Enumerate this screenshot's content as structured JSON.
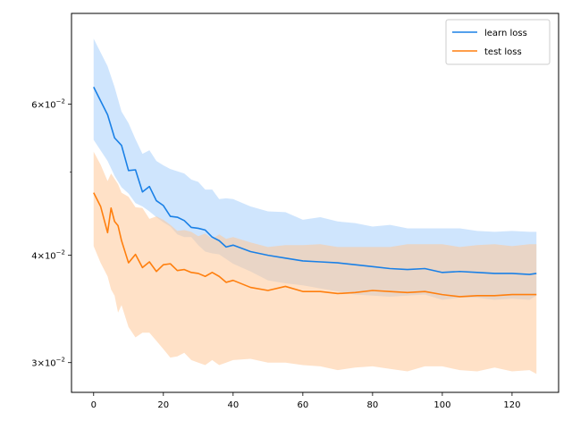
{
  "chart_data": {
    "type": "line",
    "title": "",
    "xlabel": "",
    "ylabel": "",
    "yscale": "log",
    "xlim": [
      -6.35,
      133.35
    ],
    "ylim": [
      0.0277,
      0.0765
    ],
    "grid": false,
    "legend_position": "top-right",
    "x_ticks": [
      0,
      20,
      40,
      60,
      80,
      100,
      120
    ],
    "x_tick_labels": [
      "0",
      "20",
      "40",
      "60",
      "80",
      "100",
      "120"
    ],
    "y_ticks": [
      {
        "value": 0.06,
        "mant": "6",
        "exp": "−2"
      },
      {
        "value": 0.04,
        "mant": "4",
        "exp": "−2"
      },
      {
        "value": 0.03,
        "mant": "3",
        "exp": "−2"
      }
    ],
    "y_minor_ticks": [
      0.05
    ],
    "y_tick_base": "×10",
    "series": [
      {
        "name": "learn loss",
        "color": "#1a80e6",
        "band_color": "#a8d0fb",
        "x": [
          0,
          4,
          6,
          8,
          10,
          12,
          14,
          16,
          18,
          20,
          22,
          24,
          26,
          28,
          30,
          32,
          34,
          36,
          38,
          40,
          45,
          50,
          55,
          60,
          65,
          70,
          75,
          80,
          85,
          90,
          95,
          100,
          105,
          110,
          115,
          120,
          125,
          127
        ],
        "values": [
          0.0628,
          0.0583,
          0.0548,
          0.0537,
          0.0502,
          0.0503,
          0.0474,
          0.0481,
          0.0463,
          0.0457,
          0.0444,
          0.0443,
          0.0439,
          0.0431,
          0.043,
          0.0428,
          0.042,
          0.0416,
          0.0409,
          0.0411,
          0.0404,
          0.04,
          0.0397,
          0.0394,
          0.0393,
          0.0392,
          0.039,
          0.0388,
          0.0386,
          0.0385,
          0.0386,
          0.0382,
          0.0383,
          0.0382,
          0.0381,
          0.0381,
          0.038,
          0.0381
        ],
        "lower": [
          0.0545,
          0.0515,
          0.0495,
          0.048,
          0.0472,
          0.046,
          0.0456,
          0.045,
          0.0443,
          0.0437,
          0.0432,
          0.0423,
          0.042,
          0.042,
          0.0411,
          0.0404,
          0.0402,
          0.0401,
          0.0396,
          0.0391,
          0.0383,
          0.0374,
          0.0371,
          0.0369,
          0.0366,
          0.0363,
          0.036,
          0.0359,
          0.0358,
          0.0359,
          0.036,
          0.0355,
          0.0357,
          0.0357,
          0.0355,
          0.0356,
          0.0355,
          0.0359
        ],
        "upper": [
          0.0715,
          0.0664,
          0.0628,
          0.0588,
          0.057,
          0.0546,
          0.0525,
          0.053,
          0.0515,
          0.0509,
          0.0504,
          0.0501,
          0.0498,
          0.049,
          0.0487,
          0.0477,
          0.0477,
          0.0465,
          0.0466,
          0.0465,
          0.0456,
          0.045,
          0.0449,
          0.044,
          0.0443,
          0.0438,
          0.0436,
          0.0432,
          0.0434,
          0.043,
          0.043,
          0.043,
          0.043,
          0.0427,
          0.0426,
          0.0427,
          0.0426,
          0.0426
        ]
      },
      {
        "name": "test loss",
        "color": "#ff7f0e",
        "band_color": "#ffc999",
        "x": [
          0,
          2,
          4,
          5,
          6,
          7,
          8,
          10,
          12,
          14,
          16,
          18,
          20,
          22,
          24,
          26,
          28,
          30,
          32,
          34,
          36,
          38,
          40,
          45,
          50,
          55,
          60,
          65,
          70,
          75,
          80,
          85,
          90,
          95,
          100,
          105,
          110,
          115,
          120,
          125,
          127
        ],
        "values": [
          0.0473,
          0.0456,
          0.0425,
          0.0454,
          0.0438,
          0.0433,
          0.0416,
          0.0392,
          0.0401,
          0.0387,
          0.0393,
          0.0383,
          0.039,
          0.0391,
          0.0384,
          0.0385,
          0.0382,
          0.0381,
          0.0378,
          0.0382,
          0.0378,
          0.0372,
          0.0374,
          0.0367,
          0.0364,
          0.0368,
          0.0363,
          0.0363,
          0.0361,
          0.0362,
          0.0364,
          0.0363,
          0.0362,
          0.0363,
          0.036,
          0.0358,
          0.0359,
          0.0359,
          0.036,
          0.036,
          0.036
        ],
        "lower": [
          0.041,
          0.0392,
          0.0378,
          0.0365,
          0.0359,
          0.0343,
          0.035,
          0.033,
          0.0321,
          0.0325,
          0.0325,
          0.0318,
          0.0311,
          0.0304,
          0.0305,
          0.0308,
          0.0302,
          0.03,
          0.0298,
          0.0302,
          0.0298,
          0.03,
          0.0302,
          0.0303,
          0.03,
          0.03,
          0.0298,
          0.0297,
          0.0294,
          0.0296,
          0.0297,
          0.0295,
          0.0293,
          0.0297,
          0.0297,
          0.0294,
          0.0293,
          0.0296,
          0.0293,
          0.0294,
          0.0291
        ],
        "upper": [
          0.0528,
          0.051,
          0.0488,
          0.0498,
          0.0491,
          0.0484,
          0.0473,
          0.0468,
          0.0455,
          0.0454,
          0.0441,
          0.0444,
          0.044,
          0.0434,
          0.0427,
          0.0428,
          0.0426,
          0.0421,
          0.0424,
          0.0418,
          0.0423,
          0.0418,
          0.042,
          0.0414,
          0.0409,
          0.0411,
          0.0411,
          0.0412,
          0.0409,
          0.0409,
          0.0409,
          0.0409,
          0.0412,
          0.0412,
          0.0412,
          0.0409,
          0.0411,
          0.0412,
          0.041,
          0.0412,
          0.0412
        ]
      }
    ]
  }
}
